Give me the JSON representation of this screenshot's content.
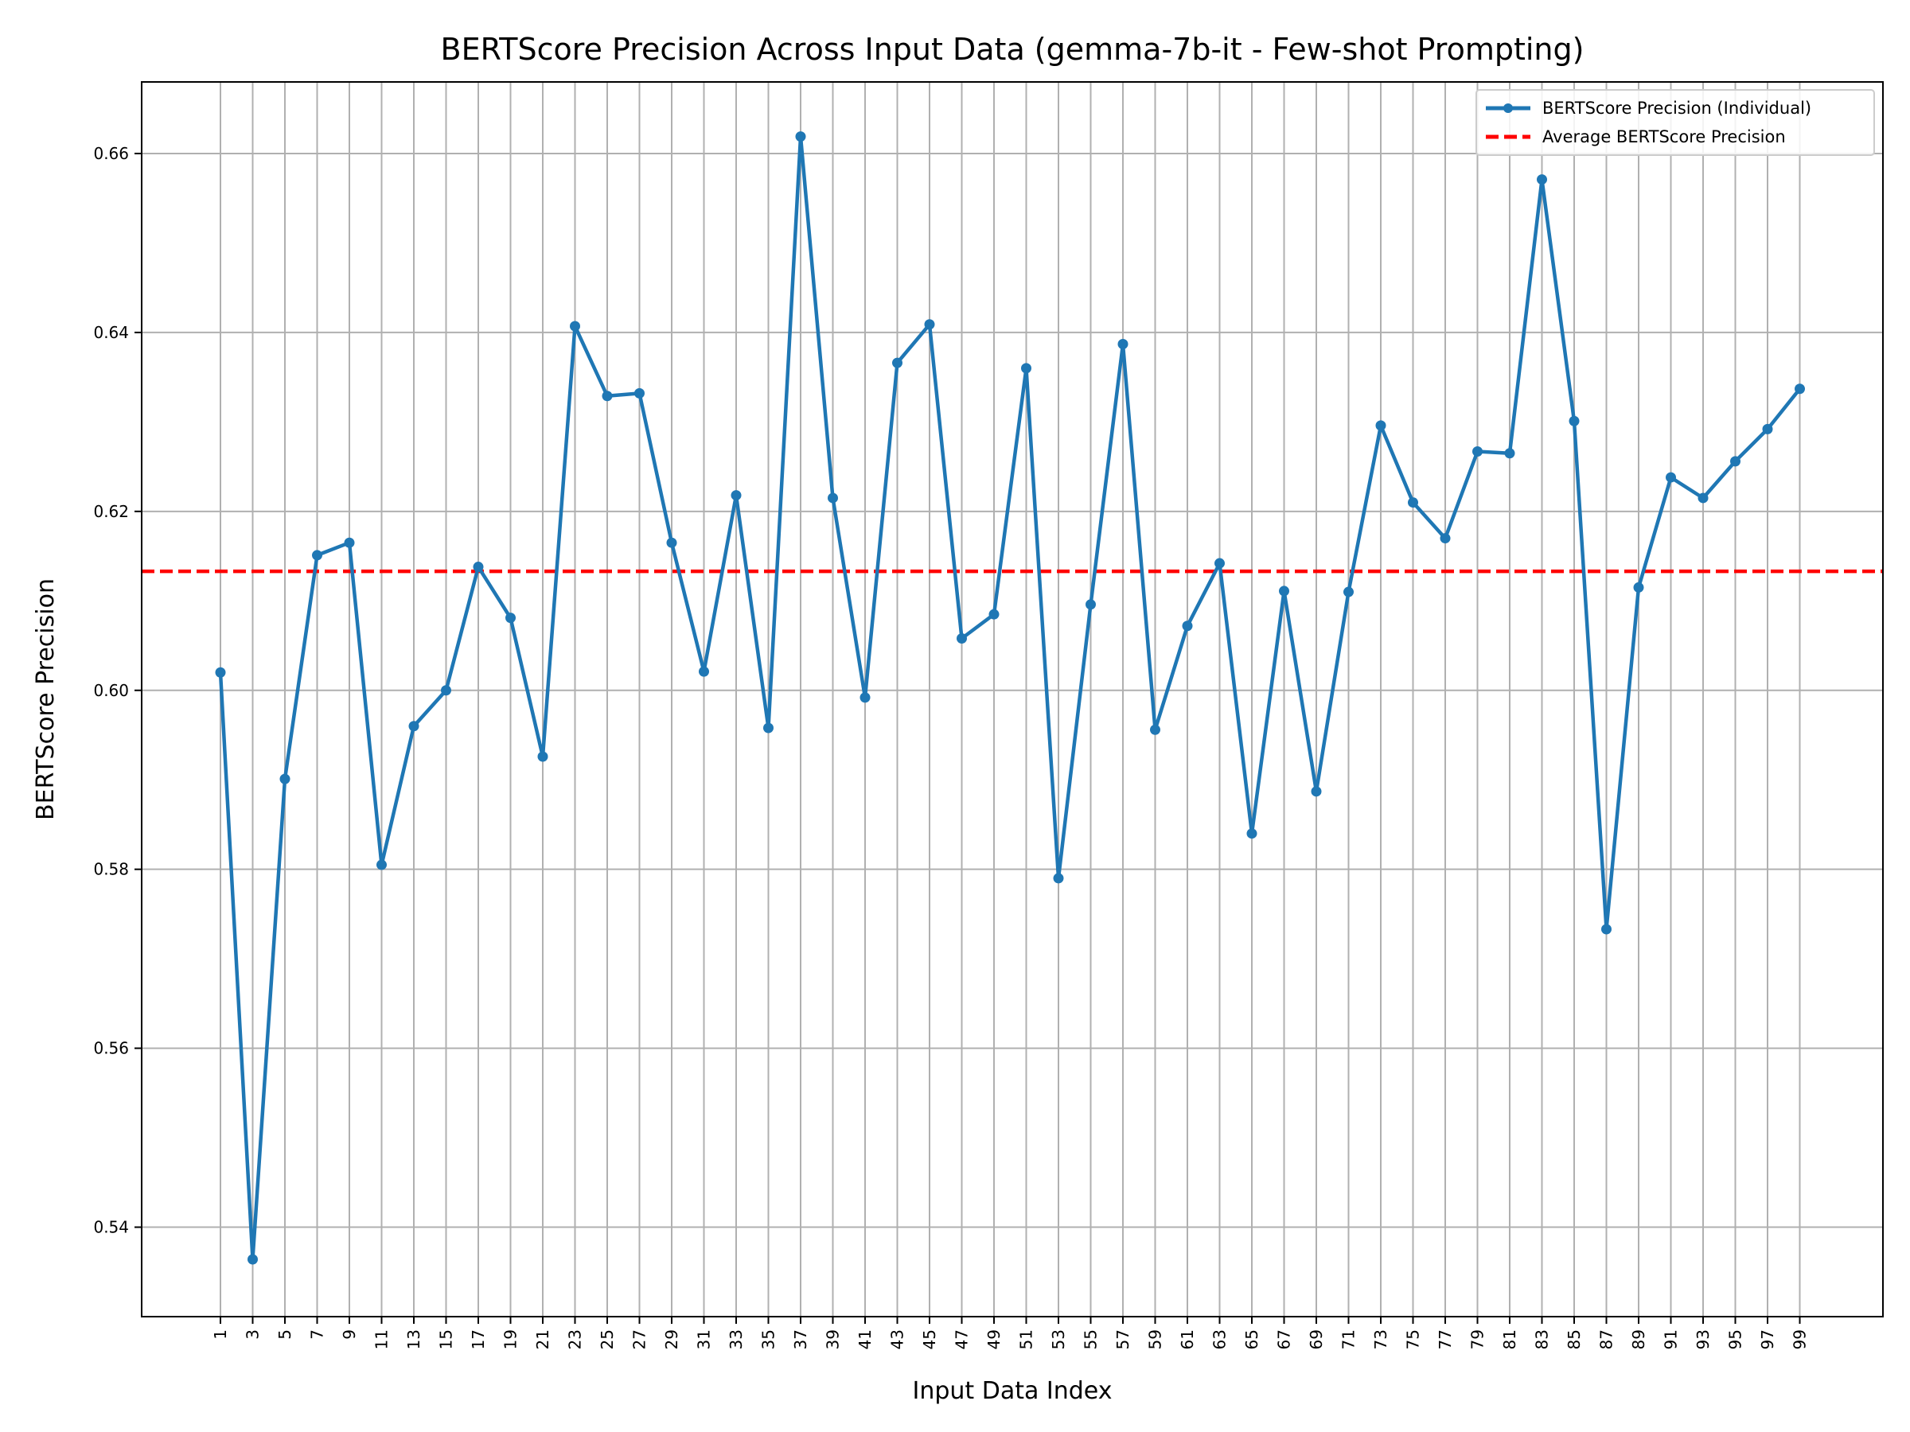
{
  "chart_data": {
    "type": "line",
    "title": "BERTScore Precision Across Input Data (gemma-7b-it - Few-shot Prompting)",
    "xlabel": "Input Data Index",
    "ylabel": "BERTScore Precision",
    "x": [
      1,
      3,
      5,
      7,
      9,
      11,
      13,
      15,
      17,
      19,
      21,
      23,
      25,
      27,
      29,
      31,
      33,
      35,
      37,
      39,
      41,
      43,
      45,
      47,
      49,
      51,
      53,
      55,
      57,
      59,
      61,
      63,
      65,
      67,
      69,
      71,
      73,
      75,
      77,
      79,
      81,
      83,
      85,
      87,
      89,
      91,
      93,
      95,
      97,
      99
    ],
    "xtick_labels": [
      "1",
      "3",
      "5",
      "7",
      "9",
      "11",
      "13",
      "15",
      "17",
      "19",
      "21",
      "23",
      "25",
      "27",
      "29",
      "31",
      "33",
      "35",
      "37",
      "39",
      "41",
      "43",
      "45",
      "47",
      "49",
      "51",
      "53",
      "55",
      "57",
      "59",
      "61",
      "63",
      "65",
      "67",
      "69",
      "71",
      "73",
      "75",
      "77",
      "79",
      "81",
      "83",
      "85",
      "87",
      "89",
      "91",
      "93",
      "95",
      "97",
      "99"
    ],
    "ylim": [
      0.53,
      0.668
    ],
    "yticks": [
      0.54,
      0.56,
      0.58,
      0.6,
      0.62,
      0.64,
      0.66
    ],
    "ytick_labels": [
      "0.54",
      "0.56",
      "0.58",
      "0.60",
      "0.62",
      "0.64",
      "0.66"
    ],
    "grid": true,
    "legend_position": "top-right",
    "series": [
      {
        "name": "BERTScore Precision (Individual)",
        "color": "#1f77b4",
        "style": "solid-with-markers",
        "values": [
          0.602,
          0.5364,
          0.5901,
          0.6151,
          0.6165,
          0.5805,
          0.596,
          0.6,
          0.6138,
          0.6081,
          0.5926,
          0.6407,
          0.6329,
          0.6332,
          0.6165,
          0.6021,
          0.6218,
          0.5958,
          0.6619,
          0.6215,
          0.5992,
          0.6366,
          0.6409,
          0.6058,
          0.6085,
          0.636,
          0.579,
          0.6096,
          0.6387,
          0.5956,
          0.6072,
          0.6142,
          0.584,
          0.6111,
          0.5887,
          0.611,
          0.6296,
          0.621,
          0.617,
          0.6267,
          0.6265,
          0.6571,
          0.6301,
          0.5733,
          0.6115,
          0.6238,
          0.6215,
          0.6256,
          0.6292,
          0.6337
        ]
      },
      {
        "name": "Average BERTScore Precision",
        "color": "#ff0000",
        "style": "dashed",
        "value": 0.6133
      }
    ]
  }
}
